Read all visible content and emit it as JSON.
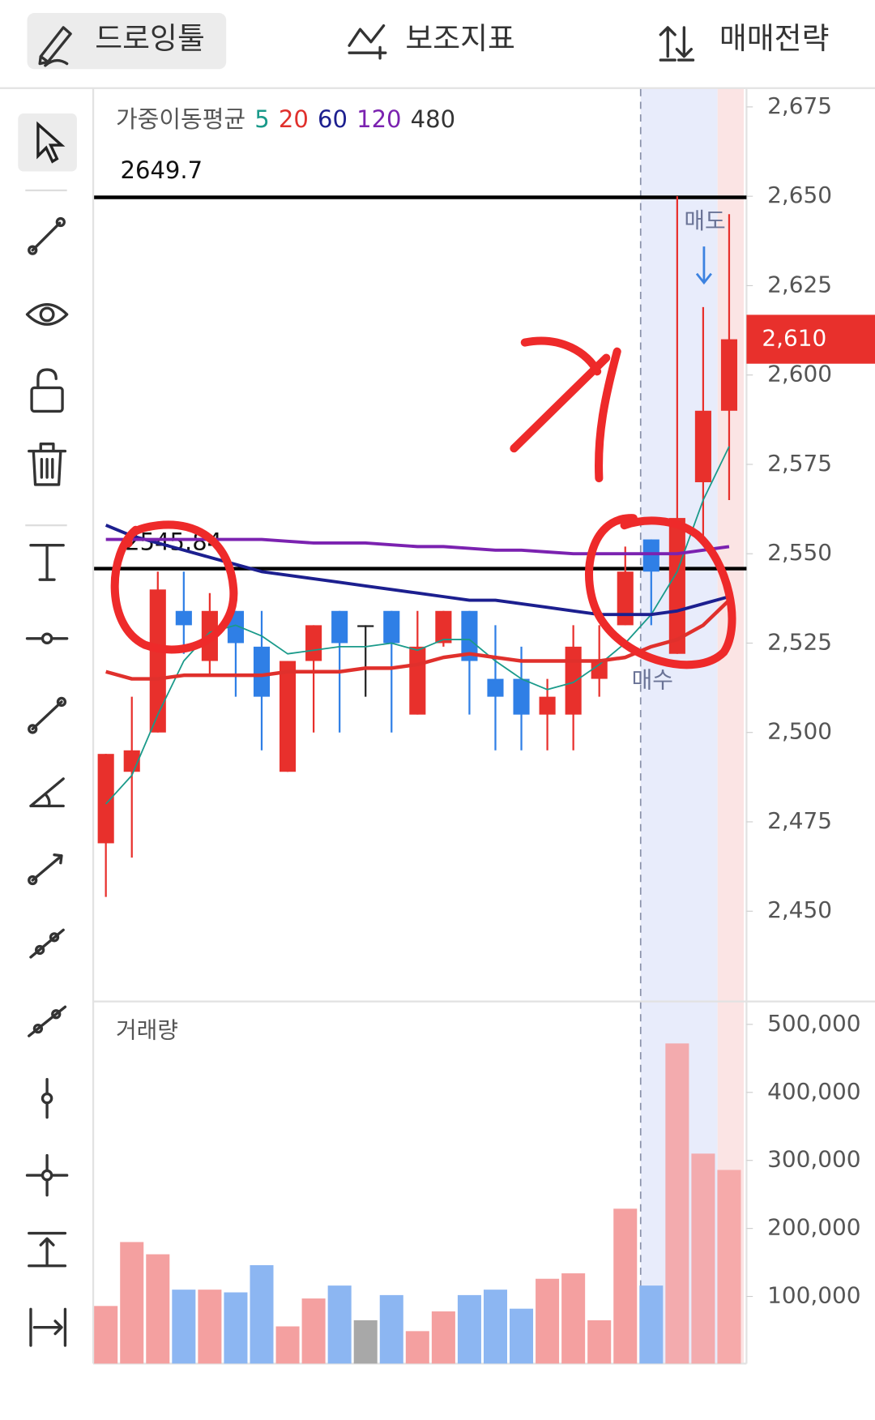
{
  "tabs": [
    "드로잉툴",
    "보조지표",
    "매매전략"
  ],
  "chart_data": {
    "type": "candlestick",
    "indicator_title": "가중이동평균",
    "candles": {
      "open": [
        2469,
        2489,
        2500,
        2534,
        2520,
        2534,
        2524,
        2489,
        2520,
        2534,
        2530,
        2534,
        2505,
        2525,
        2534,
        2515,
        2515,
        2505,
        2505,
        2515,
        2530,
        2554,
        2522,
        2570,
        2590
      ],
      "high": [
        2494,
        2510,
        2545,
        2545,
        2539,
        2534,
        2534,
        2520,
        2530,
        2534,
        2530,
        2534,
        2534,
        2534,
        2534,
        2530,
        2524,
        2515,
        2530,
        2530,
        2552,
        2554,
        2650,
        2619,
        2645
      ],
      "low": [
        2454,
        2465,
        2500,
        2522,
        2516,
        2510,
        2495,
        2489,
        2500,
        2500,
        2510,
        2500,
        2505,
        2524,
        2505,
        2495,
        2495,
        2495,
        2495,
        2510,
        2530,
        2530,
        2522,
        2555,
        2565
      ],
      "close": [
        2494,
        2495,
        2540,
        2530,
        2534,
        2525,
        2510,
        2520,
        2530,
        2525,
        2530,
        2525,
        2524,
        2534,
        2520,
        2510,
        2505,
        2510,
        2524,
        2520,
        2545,
        2545,
        2560,
        2590,
        2610
      ]
    },
    "up_color": "#e8302c",
    "down_color": "#2f7fe6",
    "flat_color": "#222222",
    "ylim": [
      2425,
      2680
    ],
    "yticks": [
      {
        "value": 2450,
        "label": "2,450"
      },
      {
        "value": 2475,
        "label": "2,475"
      },
      {
        "value": 2500,
        "label": "2,500"
      },
      {
        "value": 2525,
        "label": "2,525"
      },
      {
        "value": 2550,
        "label": "2,550"
      },
      {
        "value": 2575,
        "label": "2,575"
      },
      {
        "value": 2600,
        "label": "2,600"
      },
      {
        "value": 2625,
        "label": "2,625"
      },
      {
        "value": 2650,
        "label": "2,650"
      },
      {
        "value": 2675,
        "label": "2,675"
      }
    ],
    "moving_averages": [
      {
        "name": "5",
        "color": "#1a9a8a",
        "values": [
          2480,
          2488,
          2505,
          2520,
          2528,
          2530,
          2527,
          2522,
          2523,
          2524,
          2524,
          2525,
          2523,
          2526,
          2526,
          2520,
          2515,
          2512,
          2514,
          2519,
          2525,
          2533,
          2545,
          2565,
          2580
        ]
      },
      {
        "name": "20",
        "color": "#e0302c",
        "values": [
          2517,
          2515,
          2515,
          2516,
          2516,
          2516,
          2516,
          2517,
          2517,
          2517,
          2518,
          2518,
          2519,
          2521,
          2522,
          2521,
          2520,
          2520,
          2520,
          2520,
          2521,
          2524,
          2526,
          2530,
          2537
        ]
      },
      {
        "name": "60",
        "color": "#1c1f8f",
        "values": [
          2558,
          2555,
          2553,
          2551,
          2549,
          2547,
          2545,
          2544,
          2543,
          2542,
          2541,
          2540,
          2539,
          2538,
          2537,
          2537,
          2536,
          2535,
          2534,
          2533,
          2533,
          2533,
          2534,
          2536,
          2538
        ]
      },
      {
        "name": "120",
        "color": "#7b22b0",
        "values": [
          2554,
          2554,
          2554,
          2554,
          2554,
          2554,
          2554,
          2553.5,
          2553,
          2553,
          2553,
          2552.5,
          2552,
          2552,
          2551.5,
          2551,
          2551,
          2550.5,
          2550,
          2550,
          2550,
          2550,
          2550,
          2551,
          2552
        ]
      },
      {
        "name": "480",
        "color": "#333333"
      }
    ],
    "horizontal_lines": [
      {
        "value": 2649.7,
        "label": "2649.7"
      },
      {
        "value": 2545.84,
        "label": "2545.84"
      }
    ],
    "current_price": {
      "value": 2610,
      "label": "2,610"
    },
    "sell_label": "매도",
    "buy_label": "매수",
    "volume": {
      "title": "거래량",
      "values": [
        86000,
        180000,
        162000,
        110000,
        110000,
        106000,
        146000,
        56000,
        97000,
        116000,
        65000,
        102000,
        49000,
        78000,
        102000,
        110000,
        82000,
        126000,
        134000,
        65000,
        229000,
        116000,
        472000,
        310000,
        286000
      ],
      "up_color": "#f4a0a0",
      "down_color": "#8cb6f2",
      "flat_color": "#a8a8a8",
      "ylim": [
        0,
        535000
      ],
      "yticks": [
        {
          "value": 100000,
          "label": "100,000"
        },
        {
          "value": 200000,
          "label": "200,000"
        },
        {
          "value": 300000,
          "label": "300,000"
        },
        {
          "value": 400000,
          "label": "400,000"
        },
        {
          "value": 500000,
          "label": "500,000"
        }
      ]
    }
  }
}
